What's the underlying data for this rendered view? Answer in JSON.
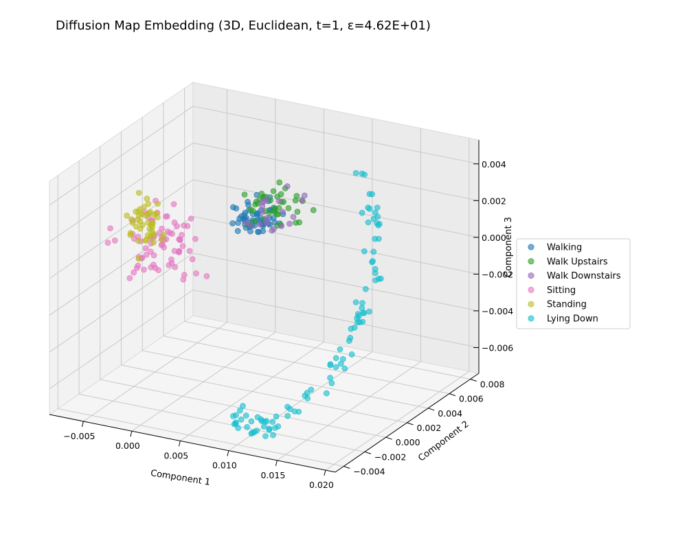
{
  "chart_data": {
    "type": "scatter",
    "projection": "3d",
    "title": "Diffusion Map Embedding (3D, Euclidean, t=1, ε=4.62E+01)",
    "xlabel": "Component 1",
    "ylabel": "Component 2",
    "zlabel": "Component 3",
    "x_ticks": [
      "−0.005",
      "0.000",
      "0.005",
      "0.010",
      "0.015",
      "0.020"
    ],
    "y_ticks": [
      "−0.004",
      "−0.002",
      "0.000",
      "0.002",
      "0.004",
      "0.006",
      "0.008"
    ],
    "z_ticks": [
      "−0.006",
      "−0.004",
      "−0.002",
      "0.000",
      "0.002",
      "0.004"
    ],
    "xlim": [
      -0.0085,
      0.021
    ],
    "ylim": [
      -0.0048,
      0.0088
    ],
    "zlim": [
      -0.0074,
      0.0053
    ],
    "grid": true,
    "legend_position": "right",
    "series": [
      {
        "name": "Walking",
        "color": "#1f77b4",
        "cluster": {
          "center": [
            0.0025,
            0.0045,
            0.0008
          ],
          "spread": [
            0.001,
            0.0008,
            0.0004
          ],
          "count": 55
        }
      },
      {
        "name": "Walk Upstairs",
        "color": "#2ca02c",
        "cluster": {
          "center": [
            0.0035,
            0.0053,
            0.0013
          ],
          "spread": [
            0.0013,
            0.0009,
            0.0005
          ],
          "count": 40
        }
      },
      {
        "name": "Walk Downstairs",
        "color": "#9467bd",
        "cluster": {
          "center": [
            0.004,
            0.005,
            0.0011
          ],
          "spread": [
            0.0011,
            0.0008,
            0.0004
          ],
          "count": 20
        }
      },
      {
        "name": "Sitting",
        "color": "#e377c2",
        "cluster": {
          "center": [
            -0.0055,
            0.0028,
            -0.0007
          ],
          "spread": [
            0.0022,
            0.001,
            0.0008
          ],
          "count": 75
        }
      },
      {
        "name": "Standing",
        "color": "#bcbd22",
        "cluster": {
          "center": [
            -0.0075,
            0.0033,
            -0.0001
          ],
          "spread": [
            0.0006,
            0.0007,
            0.0007
          ],
          "count": 45
        }
      },
      {
        "name": "Lying Down",
        "color": "#17becf",
        "cluster": {
          "curve": [
            [
              0.013,
              0.005,
              0.004
            ],
            [
              0.016,
              0.0035,
              0.002
            ],
            [
              0.018,
              0.0015,
              0.0
            ],
            [
              0.0185,
              -0.001,
              -0.002
            ],
            [
              0.017,
              -0.003,
              -0.004
            ],
            [
              0.0145,
              -0.0042,
              -0.0055
            ],
            [
              0.012,
              -0.0045,
              -0.0062
            ],
            [
              0.01,
              -0.004,
              -0.0058
            ]
          ],
          "spread": 0.0006,
          "count": 95
        }
      }
    ]
  }
}
